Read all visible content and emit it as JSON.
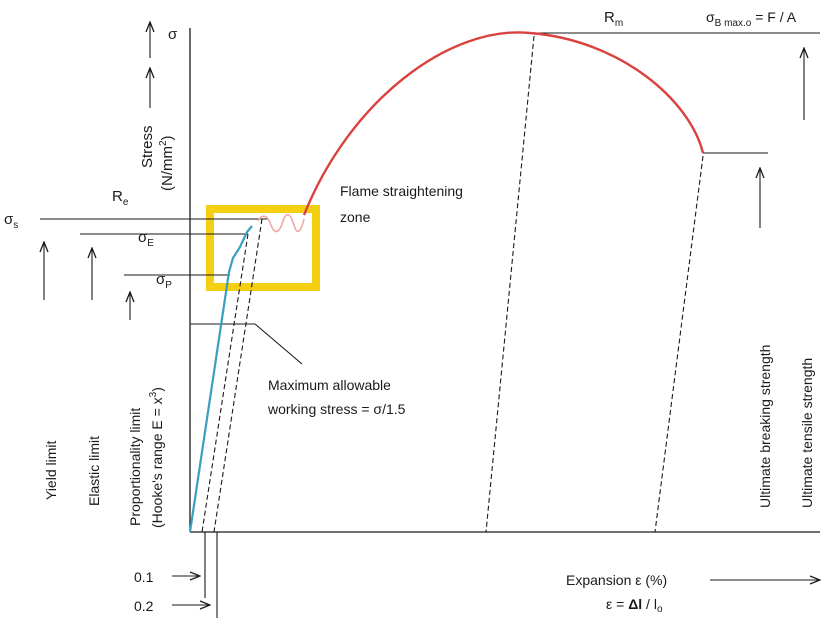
{
  "labels": {
    "sigma": "σ",
    "stress_word": "Stress",
    "stress_unit_open": "(N/mm",
    "stress_unit_sup": "2",
    "stress_unit_close": ")",
    "rm_main": "R",
    "rm_sub": "m",
    "sigma_b_main": "σ",
    "sigma_b_sub": "B max.o",
    "sigma_b_rest": " = F / A",
    "re_main": "R",
    "re_sub": "e",
    "sigma_s_main": "σ",
    "sigma_s_sub": "s",
    "sigma_e_main": "σ",
    "sigma_e_sub": "E",
    "sigma_p_main": "σ",
    "sigma_p_sub": "P",
    "flame_line1": "Flame straightening",
    "flame_line2": "zone",
    "max_line1": "Maximum allowable",
    "max_line2": "working stress = σ/1.5",
    "yield_limit": "Yield limit",
    "elastic_limit": "Elastic limit",
    "prop_line1": "Proportionality limit",
    "prop_line2_a": "(Hooke's range E = x",
    "prop_line2_sup": "3",
    "prop_line2_b": ")",
    "ultimate_breaking": "Ultimate breaking strength",
    "ultimate_tensile": "Ultimate tensile strength",
    "tick_01": "0.1",
    "tick_02": "0.2",
    "expansion": "Expansion ε (%)",
    "eps_formula_a": "ε = ",
    "eps_formula_b": "Δl",
    "eps_formula_c": " / l",
    "eps_formula_sub": "o"
  },
  "colors": {
    "curve_plastic": "#d9423f",
    "curve_elastic": "#3a9fc1",
    "wave": "#f0a8a4",
    "flame_zone": "#f5cf12",
    "line": "#1a1a1a"
  }
}
